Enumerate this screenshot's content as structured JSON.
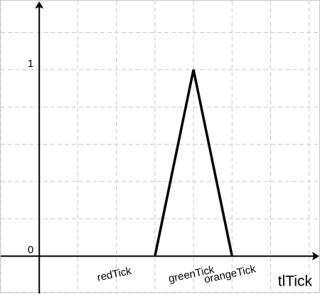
{
  "chart_data": {
    "type": "line",
    "title": "",
    "xlabel": "tlTick",
    "ylabel": "",
    "grid": true,
    "xlim": [
      -1,
      7.3
    ],
    "ylim": [
      -0.2,
      1.37
    ],
    "x_tick_labels": [
      {
        "x": 2,
        "label": "redTick"
      },
      {
        "x": 4,
        "label": "greenTick"
      },
      {
        "x": 5,
        "label": "orangeTick"
      }
    ],
    "y_tick_labels": [
      {
        "y": 0,
        "label": "0"
      },
      {
        "y": 1,
        "label": "1"
      }
    ],
    "series": [
      {
        "x": [
          3,
          4,
          5
        ],
        "y": [
          0,
          1,
          0
        ],
        "color": "#000000"
      }
    ],
    "colors": {
      "grid": "#c8c8c8",
      "axis": "#000000",
      "line": "#000000"
    }
  }
}
